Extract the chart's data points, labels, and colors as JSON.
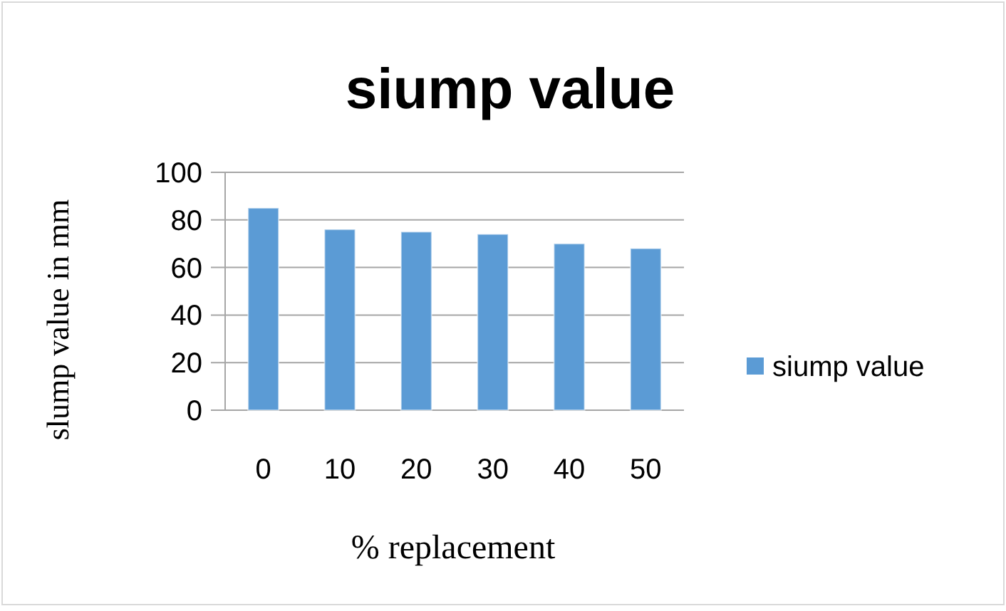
{
  "chart_data": {
    "type": "bar",
    "title": "siump value",
    "xlabel": "% replacement",
    "ylabel": "slump value in mm",
    "categories": [
      "0",
      "10",
      "20",
      "30",
      "40",
      "50"
    ],
    "series": [
      {
        "name": "siump value",
        "color": "#5b9bd5",
        "values": [
          85,
          76,
          75,
          74,
          70,
          68
        ]
      }
    ],
    "ylim": [
      0,
      100
    ],
    "yticks": [
      0,
      20,
      40,
      60,
      80,
      100
    ],
    "grid": "y",
    "legend": "right"
  }
}
